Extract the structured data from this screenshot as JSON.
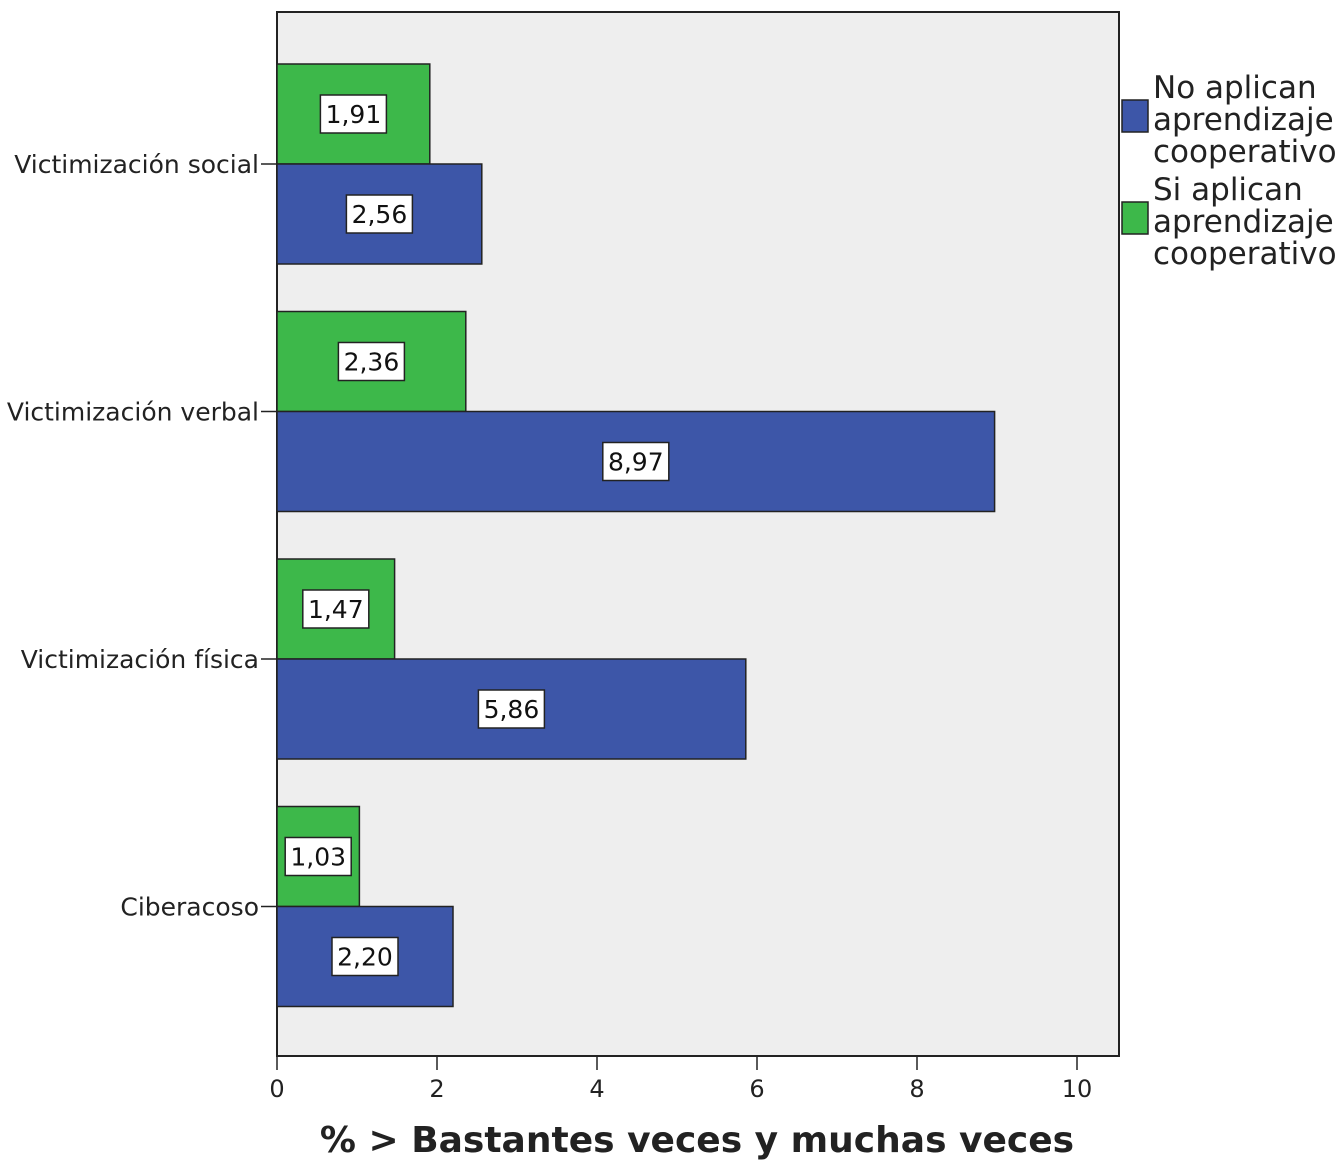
{
  "chart_data": {
    "type": "bar",
    "orientation": "horizontal",
    "categories": [
      "Victimización social",
      "Victimización verbal",
      "Victimización física",
      "Ciberacoso"
    ],
    "series": [
      {
        "name": "Si aplican aprendizaje cooperativo",
        "color": "#3db84a",
        "values": [
          1.91,
          2.36,
          1.47,
          1.03
        ],
        "labels": [
          "1,91",
          "2,36",
          "1,47",
          "1,03"
        ]
      },
      {
        "name": "No aplican aprendizaje cooperativo",
        "color": "#3d56a8",
        "values": [
          2.56,
          8.97,
          5.86,
          2.2
        ],
        "labels": [
          "2,56",
          "8,97",
          "5,86",
          "2,20"
        ]
      }
    ],
    "legend": [
      {
        "lines": [
          "No aplican",
          "aprendizaje",
          "cooperativo"
        ],
        "color": "#3d56a8"
      },
      {
        "lines": [
          "Si aplican",
          "aprendizaje",
          "cooperativo"
        ],
        "color": "#3db84a"
      }
    ],
    "xlabel": "% > Bastantes veces y muchas veces",
    "xlim": [
      0,
      10.5
    ],
    "xticks": [
      0,
      2,
      4,
      6,
      8,
      10
    ],
    "xtick_labels": [
      "0",
      "2",
      "4",
      "6",
      "8",
      "10"
    ],
    "legend_position": "right",
    "plot_background": "#eeeeee",
    "grid": false
  }
}
